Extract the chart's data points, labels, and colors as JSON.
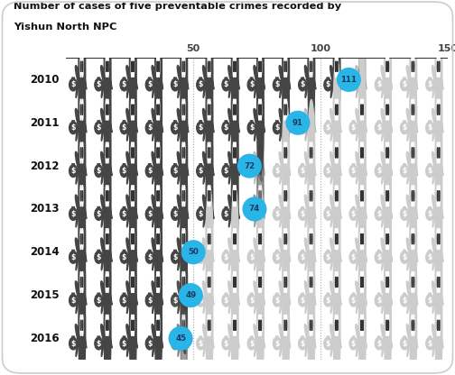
{
  "title_line1": "Number of cases of five preventable crimes recorded by",
  "title_line2": "Yishun North NPC",
  "years": [
    2010,
    2011,
    2012,
    2013,
    2014,
    2015,
    2016
  ],
  "values": [
    111,
    91,
    72,
    74,
    50,
    49,
    45
  ],
  "scale": 10,
  "x_ticks": [
    50,
    100,
    150
  ],
  "x_max": 150,
  "n_icons": 15,
  "bg_color": "#ffffff",
  "active_color": "#454545",
  "inactive_color": "#cccccc",
  "bubble_color": "#29b5e8",
  "bubble_text_color": "#1a3a5c",
  "title_color": "#111111",
  "year_color": "#111111",
  "tick_color": "#444444",
  "line_color": "#333333",
  "grid_color": "#aaaaaa"
}
